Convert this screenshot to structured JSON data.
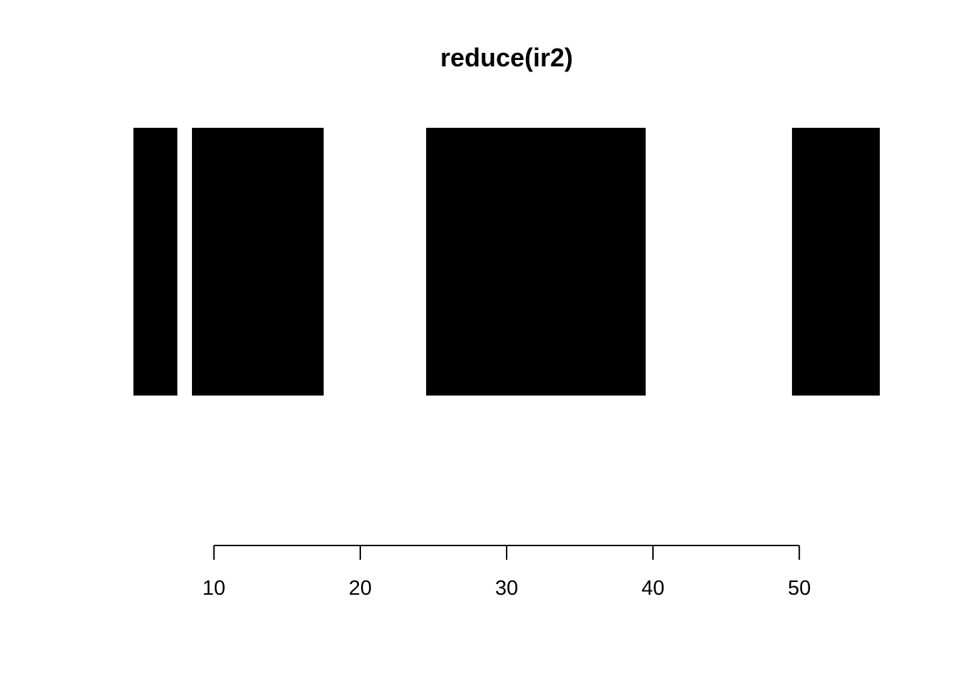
{
  "chart_data": {
    "type": "bar",
    "title": "reduce(ir2)",
    "xlabel": "",
    "ylabel": "",
    "grid": false,
    "legend": "none",
    "bar_color": "#000000",
    "xlim": [
      4.5,
      55.5
    ],
    "ticks": [
      10,
      20,
      30,
      40,
      50
    ],
    "tick_labels": [
      "10",
      "20",
      "30",
      "40",
      "50"
    ],
    "ranges": [
      {
        "start": 4.5,
        "end": 7.5
      },
      {
        "start": 8.5,
        "end": 17.5
      },
      {
        "start": 24.5,
        "end": 39.5
      },
      {
        "start": 49.5,
        "end": 55.5
      }
    ]
  }
}
